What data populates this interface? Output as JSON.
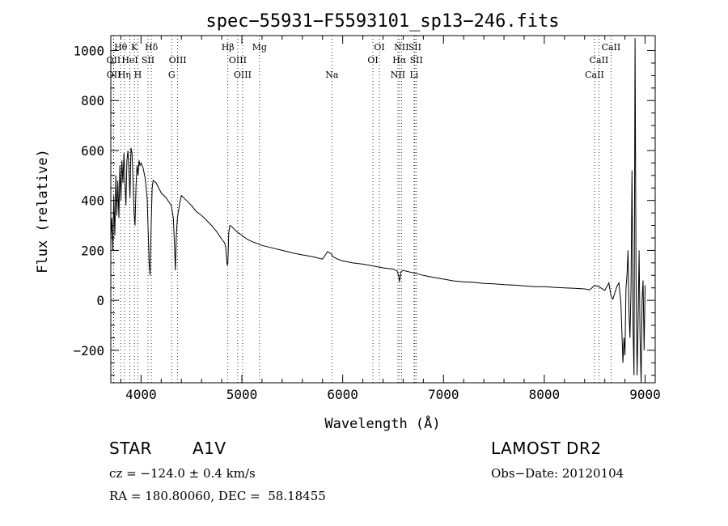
{
  "chart_data": {
    "type": "line",
    "title": "spec−55931−F5593101_sp13−246.fits",
    "xlabel": "Wavelength (Å)",
    "ylabel": "Flux (relative)",
    "xlim": [
      3700,
      9100
    ],
    "ylim": [
      -330,
      1060
    ],
    "xticks": [
      4000,
      5000,
      6000,
      7000,
      8000,
      9000
    ],
    "yticks": [
      -200,
      0,
      200,
      400,
      600,
      800,
      1000
    ],
    "yticklabels": [
      "−200",
      "0",
      "200",
      "400",
      "600",
      "800",
      "1000"
    ],
    "grid": false,
    "series": [
      {
        "x": [
          3700,
          3710,
          3720,
          3730,
          3740,
          3750,
          3760,
          3770,
          3780,
          3790,
          3800,
          3810,
          3820,
          3830,
          3840,
          3850,
          3860,
          3870,
          3880,
          3890,
          3900,
          3910,
          3920,
          3930,
          3940,
          3950,
          3960,
          3970,
          3980,
          3990,
          4000,
          4020,
          4040,
          4060,
          4080,
          4090,
          4100,
          4110,
          4120,
          4150,
          4200,
          4250,
          4300,
          4320,
          4330,
          4340,
          4350,
          4360,
          4380,
          4400,
          4450,
          4500,
          4550,
          4600,
          4650,
          4700,
          4750,
          4800,
          4830,
          4840,
          4850,
          4855,
          4861,
          4865,
          4870,
          4880,
          4900,
          4950,
          5000,
          5050,
          5100,
          5150,
          5200,
          5300,
          5400,
          5500,
          5600,
          5700,
          5800,
          5850,
          5890,
          5900,
          5950,
          6000,
          6100,
          6200,
          6300,
          6400,
          6500,
          6540,
          6555,
          6563,
          6570,
          6580,
          6600,
          6700,
          6800,
          6900,
          7000,
          7100,
          7200,
          7300,
          7400,
          7500,
          7600,
          7700,
          7800,
          7900,
          8000,
          8100,
          8200,
          8300,
          8400,
          8450,
          8500,
          8540,
          8600,
          8640,
          8660,
          8680,
          8700,
          8720,
          8740,
          8760,
          8780,
          8790,
          8800,
          8810,
          8820,
          8830,
          8840,
          8850,
          8860,
          8870,
          8880,
          8890,
          8900,
          8910,
          8920,
          8930,
          8940,
          8950,
          8960,
          8970,
          8980,
          8990,
          9000
        ],
        "y": [
          250,
          330,
          200,
          420,
          260,
          500,
          340,
          480,
          330,
          540,
          400,
          560,
          470,
          590,
          480,
          380,
          560,
          600,
          520,
          410,
          610,
          590,
          490,
          350,
          300,
          460,
          540,
          500,
          560,
          540,
          550,
          530,
          490,
          410,
          150,
          100,
          300,
          450,
          480,
          470,
          430,
          410,
          380,
          330,
          240,
          120,
          260,
          330,
          380,
          420,
          400,
          380,
          355,
          340,
          320,
          300,
          275,
          245,
          230,
          210,
          160,
          140,
          150,
          200,
          270,
          300,
          295,
          275,
          260,
          245,
          235,
          228,
          220,
          210,
          200,
          190,
          182,
          175,
          165,
          195,
          185,
          175,
          165,
          158,
          150,
          145,
          138,
          130,
          125,
          118,
          100,
          75,
          90,
          115,
          120,
          110,
          100,
          92,
          85,
          78,
          74,
          72,
          68,
          66,
          63,
          61,
          58,
          55,
          55,
          52,
          50,
          48,
          46,
          42,
          60,
          55,
          40,
          70,
          20,
          5,
          30,
          55,
          70,
          -10,
          -250,
          -150,
          -220,
          50,
          100,
          200,
          -50,
          -150,
          50,
          520,
          -100,
          -300,
          1050,
          100,
          -300,
          -100,
          200,
          -150,
          -330,
          0,
          80,
          -200,
          60
        ]
      }
    ],
    "lines": [
      {
        "label": "Hθ",
        "x": 3798,
        "row": 0
      },
      {
        "label": "K",
        "x": 3934,
        "row": 0
      },
      {
        "label": "Hδ",
        "x": 4102,
        "row": 0
      },
      {
        "label": "Hβ",
        "x": 4861,
        "row": 0
      },
      {
        "label": "Mg",
        "x": 5175,
        "row": 0
      },
      {
        "label": "OI",
        "x": 6364,
        "row": 0
      },
      {
        "label": "NII",
        "x": 6583,
        "row": 0
      },
      {
        "label": "SII",
        "x": 6716,
        "row": 0
      },
      {
        "label": "CaII",
        "x": 8662,
        "row": 0
      },
      {
        "label": "OII",
        "x": 3727,
        "row": 1
      },
      {
        "label": "HeI",
        "x": 3889,
        "row": 1
      },
      {
        "label": "SII",
        "x": 4069,
        "row": 1
      },
      {
        "label": "OIII",
        "x": 4363,
        "row": 1
      },
      {
        "label": "OIII",
        "x": 4959,
        "row": 1
      },
      {
        "label": "OI",
        "x": 6300,
        "row": 1
      },
      {
        "label": "Hα",
        "x": 6563,
        "row": 1
      },
      {
        "label": "SII",
        "x": 6731,
        "row": 1
      },
      {
        "label": "CaII",
        "x": 8542,
        "row": 1
      },
      {
        "label": "OII",
        "x": 3729,
        "row": 2
      },
      {
        "label": "Hη",
        "x": 3835,
        "row": 2
      },
      {
        "label": "H",
        "x": 3968,
        "row": 2
      },
      {
        "label": "G",
        "x": 4304,
        "row": 2
      },
      {
        "label": "OIII",
        "x": 5007,
        "row": 2
      },
      {
        "label": "Na",
        "x": 5893,
        "row": 2
      },
      {
        "label": "NII",
        "x": 6548,
        "row": 2
      },
      {
        "label": "Li",
        "x": 6708,
        "row": 2
      },
      {
        "label": "CaII",
        "x": 8498,
        "row": 2
      }
    ]
  },
  "info": {
    "class_label": "STAR",
    "subclass": "A1V",
    "survey": "LAMOST DR2",
    "cz": "cz = −124.0 ± 0.4 km/s",
    "obs_date": "Obs−Date: 20120104",
    "coords": "RA = 180.80060, DEC =  58.18455"
  }
}
